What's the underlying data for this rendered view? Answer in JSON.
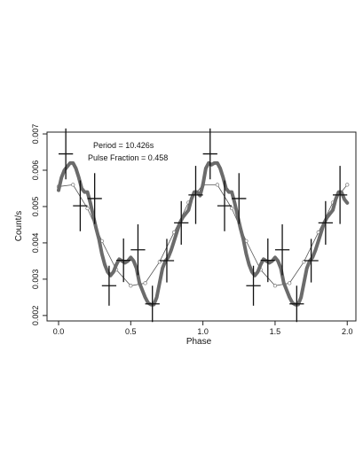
{
  "chart_data": {
    "type": "line",
    "xlabel": "Phase",
    "ylabel": "Count/s",
    "xlim": [
      -0.08,
      2.06
    ],
    "ylim": [
      0.00185,
      0.00705
    ],
    "xticks": [
      0.0,
      0.5,
      1.0,
      1.5,
      2.0
    ],
    "xtick_labels": [
      "0.0",
      "0.5",
      "1.0",
      "1.5",
      "2.0"
    ],
    "yticks": [
      0.002,
      0.003,
      0.004,
      0.005,
      0.006,
      0.007
    ],
    "ytick_labels": [
      "0.002",
      "0.003",
      "0.004",
      "0.005",
      "0.006",
      "0.007"
    ],
    "annotations": [
      "Period = 10.426s",
      "Pulse Fraction = 0.458"
    ],
    "grid": false,
    "colors": {
      "data": "#111111",
      "smooth_curve": "#6b6b6b",
      "model_curve": "#555555",
      "markers": "#777777"
    },
    "series": [
      {
        "style": "crosses",
        "x": [
          0.05,
          0.15,
          0.25,
          0.35,
          0.45,
          0.55,
          0.65,
          0.75,
          0.85,
          0.95,
          1.05,
          1.15,
          1.25,
          1.35,
          1.45,
          1.55,
          1.65,
          1.75,
          1.85,
          1.95
        ],
        "y": [
          0.00645,
          0.00502,
          0.00522,
          0.00282,
          0.00352,
          0.00381,
          0.00232,
          0.00351,
          0.00455,
          0.00532,
          0.00645,
          0.00502,
          0.00522,
          0.00282,
          0.00352,
          0.00381,
          0.00232,
          0.00351,
          0.00455,
          0.00532
        ],
        "y_err": [
          0.0007,
          0.0007,
          0.0007,
          0.00055,
          0.0006,
          0.0007,
          0.0005,
          0.0006,
          0.0006,
          0.0008,
          0.0007,
          0.0007,
          0.0007,
          0.00055,
          0.0006,
          0.0007,
          0.0005,
          0.0006,
          0.0006,
          0.0008
        ],
        "x_err": 0.05
      },
      {
        "style": "thick smooth line",
        "x": [
          0.0,
          0.02,
          0.04,
          0.06,
          0.08,
          0.1,
          0.12,
          0.14,
          0.16,
          0.18,
          0.2,
          0.22,
          0.24,
          0.26,
          0.28,
          0.3,
          0.32,
          0.34,
          0.36,
          0.38,
          0.4,
          0.42,
          0.44,
          0.46,
          0.48,
          0.5,
          0.52,
          0.54,
          0.56,
          0.58,
          0.6,
          0.62,
          0.64,
          0.66,
          0.68,
          0.7,
          0.72,
          0.74,
          0.76,
          0.78,
          0.8,
          0.82,
          0.84,
          0.86,
          0.88,
          0.9,
          0.92,
          0.94,
          0.96,
          0.98,
          1.0,
          1.02,
          1.04,
          1.06,
          1.08,
          1.1,
          1.12,
          1.14,
          1.16,
          1.18,
          1.2,
          1.22,
          1.24,
          1.26,
          1.28,
          1.3,
          1.32,
          1.34,
          1.36,
          1.38,
          1.4,
          1.42,
          1.44,
          1.46,
          1.48,
          1.5,
          1.52,
          1.54,
          1.56,
          1.58,
          1.6,
          1.62,
          1.64,
          1.66,
          1.68,
          1.7,
          1.72,
          1.74,
          1.76,
          1.78,
          1.8,
          1.82,
          1.84,
          1.86,
          1.88,
          1.9,
          1.92,
          1.94,
          1.96,
          1.98,
          2.0
        ],
        "y": [
          0.00545,
          0.0058,
          0.006,
          0.0061,
          0.0062,
          0.0062,
          0.00605,
          0.0058,
          0.0055,
          0.0054,
          0.0054,
          0.0051,
          0.00475,
          0.0044,
          0.0041,
          0.0037,
          0.0034,
          0.0032,
          0.0031,
          0.0032,
          0.0034,
          0.00355,
          0.0035,
          0.00345,
          0.0035,
          0.0036,
          0.0035,
          0.0033,
          0.0029,
          0.0027,
          0.0025,
          0.00235,
          0.0023,
          0.0023,
          0.0025,
          0.0029,
          0.0033,
          0.0035,
          0.0036,
          0.0038,
          0.00405,
          0.0043,
          0.00455,
          0.0047,
          0.0048,
          0.0049,
          0.0052,
          0.0054,
          0.0054,
          0.0053,
          0.0056,
          0.00605,
          0.0062,
          0.00615,
          0.0062,
          0.0062,
          0.00605,
          0.0058,
          0.0055,
          0.0054,
          0.0054,
          0.0051,
          0.00475,
          0.0044,
          0.0041,
          0.0037,
          0.0034,
          0.0032,
          0.0031,
          0.0032,
          0.0034,
          0.00355,
          0.0035,
          0.00345,
          0.0035,
          0.0036,
          0.0035,
          0.0033,
          0.0029,
          0.0027,
          0.0025,
          0.00235,
          0.0023,
          0.0023,
          0.0025,
          0.0029,
          0.0033,
          0.0035,
          0.0036,
          0.0038,
          0.00405,
          0.0043,
          0.00455,
          0.0047,
          0.0048,
          0.0049,
          0.0052,
          0.0054,
          0.0054,
          0.0052,
          0.0051
        ]
      },
      {
        "style": "thin sinusoid with open circles",
        "x": [
          0.0,
          0.1,
          0.2,
          0.3,
          0.4,
          0.5,
          0.6,
          0.7,
          0.8,
          0.9,
          1.0,
          1.1,
          1.2,
          1.3,
          1.4,
          1.5,
          1.6,
          1.7,
          1.8,
          1.9,
          2.0
        ],
        "y": [
          0.00555,
          0.0056,
          0.00495,
          0.00405,
          0.00326,
          0.00282,
          0.00289,
          0.00348,
          0.00429,
          0.00511,
          0.0056,
          0.0056,
          0.00495,
          0.00405,
          0.00326,
          0.00282,
          0.00289,
          0.00348,
          0.00429,
          0.00511,
          0.0056
        ]
      }
    ]
  }
}
